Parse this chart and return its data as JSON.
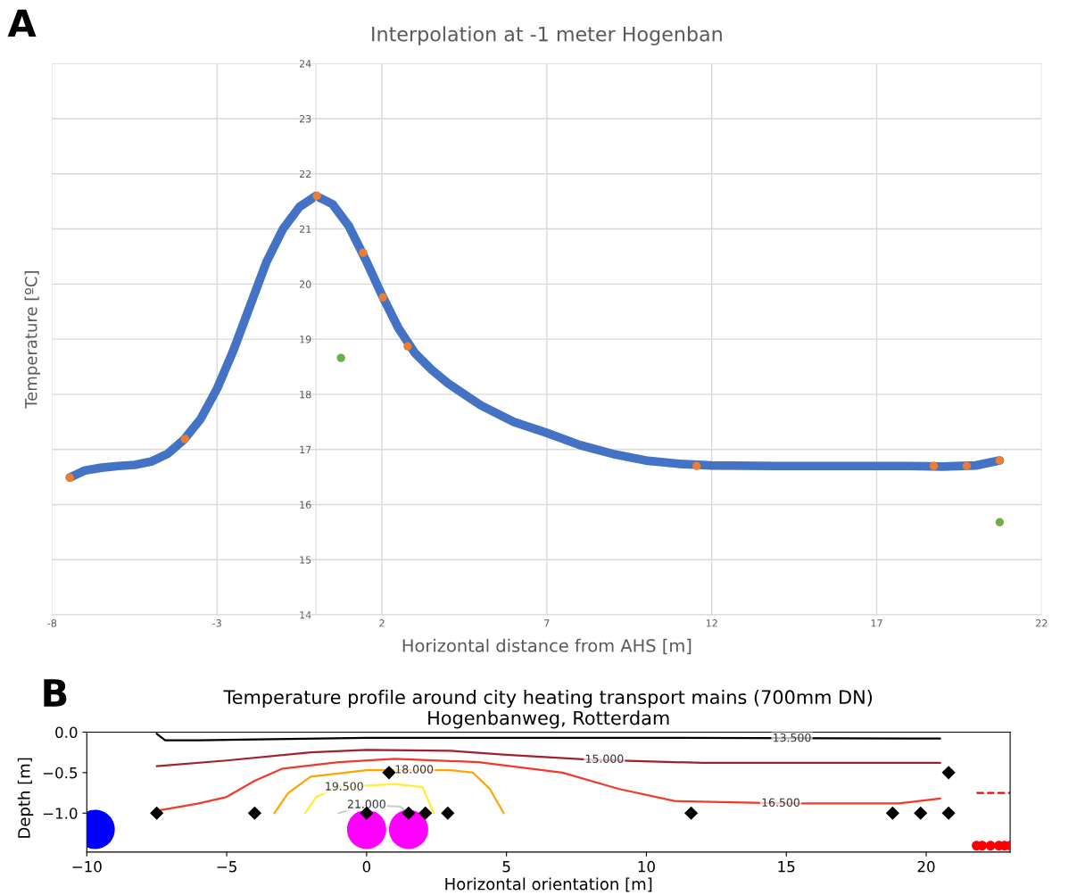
{
  "chart_data": [
    {
      "type": "scatter",
      "title": "Interpolation at -1 meter Hogenban",
      "xlabel": "Horizontal distance from AHS [m]",
      "ylabel": "Temperature [ºC]",
      "annotations": [
        "A"
      ],
      "xlim": [
        -8,
        22
      ],
      "xticks": [
        -8,
        -3,
        2,
        7,
        12,
        17,
        22
      ],
      "ylim": [
        14,
        24
      ],
      "yticks": [
        14,
        15,
        16,
        17,
        18,
        19,
        20,
        21,
        22,
        23,
        24
      ],
      "grid": true,
      "series": [
        {
          "type": "line",
          "color": "#4472c4",
          "x": [
            -7.46,
            -7,
            -6.5,
            -6,
            -5.5,
            -5,
            -4.5,
            -4,
            -3.5,
            -3,
            -2.5,
            -2,
            -1.5,
            -1,
            -0.5,
            0,
            0.5,
            1,
            1.5,
            2,
            2.5,
            3,
            3.5,
            4,
            5,
            6,
            7,
            8,
            9,
            10,
            11,
            12,
            14,
            16,
            18,
            19,
            20,
            20.73
          ],
          "values": [
            16.49,
            16.62,
            16.67,
            16.7,
            16.72,
            16.78,
            16.92,
            17.18,
            17.55,
            18.1,
            18.8,
            19.6,
            20.4,
            21.0,
            21.4,
            21.6,
            21.45,
            21.05,
            20.45,
            19.8,
            19.2,
            18.75,
            18.45,
            18.2,
            17.8,
            17.5,
            17.3,
            17.08,
            16.92,
            16.8,
            16.74,
            16.71,
            16.7,
            16.7,
            16.7,
            16.69,
            16.71,
            16.8
          ]
        },
        {
          "marker": "circle",
          "color": "#ed7d31",
          "x": [
            -7.46,
            -3.97,
            0.03,
            1.43,
            2.03,
            2.78,
            11.54,
            18.73,
            19.73,
            20.73
          ],
          "values": [
            16.49,
            17.19,
            21.6,
            20.57,
            19.76,
            18.87,
            16.7,
            16.7,
            16.7,
            16.8
          ]
        },
        {
          "marker": "circle",
          "color": "#70ad47",
          "x": [
            0.76,
            20.73
          ],
          "values": [
            18.66,
            15.68
          ]
        }
      ]
    },
    {
      "type": "scatter",
      "title": "Temperature profile around city heating transport mains (700mm DN)\nHogenbanweg, Rotterdam",
      "xlabel": "Horizontal orientation [m]",
      "ylabel": "Depth [m]",
      "annotations": [
        "B",
        {
          "text": "13.500",
          "x": 15.2,
          "y": -0.08
        },
        {
          "text": "15.000",
          "x": 8.5,
          "y": -0.34
        },
        {
          "text": "16.500",
          "x": 14.8,
          "y": -0.88
        },
        {
          "text": "18.000",
          "x": 1.7,
          "y": -0.47
        },
        {
          "text": "19.500",
          "x": -0.8,
          "y": -0.68
        },
        {
          "text": "21.000",
          "x": 0,
          "y": -0.9
        }
      ],
      "xlim": [
        -10,
        23
      ],
      "xticks": [
        {
          "value": -10,
          "label": "−10"
        },
        {
          "value": -5,
          "label": "−5"
        },
        0,
        5,
        10,
        15,
        20
      ],
      "ylim": [
        -1.48,
        0
      ],
      "yticks": [
        {
          "value": -1.0,
          "label": "−1.0"
        },
        {
          "value": -0.5,
          "label": "−0.5"
        },
        {
          "value": 0,
          "label": "0.0"
        }
      ],
      "grid": false,
      "series": [
        {
          "type": "line",
          "color": "#000000",
          "x": [
            -7.5,
            -7.2,
            -6,
            0,
            10,
            20.5
          ],
          "values": [
            -0.02,
            -0.1,
            -0.1,
            -0.07,
            -0.07,
            -0.08
          ]
        },
        {
          "type": "line",
          "color": "#a3202a",
          "x": [
            -7.5,
            -5,
            -2,
            0,
            3,
            5,
            8,
            12,
            20.5
          ],
          "values": [
            -0.42,
            -0.35,
            -0.25,
            -0.22,
            -0.23,
            -0.28,
            -0.34,
            -0.38,
            -0.38
          ]
        },
        {
          "type": "line",
          "color": "#f03a2a",
          "x": [
            -7.5,
            -6,
            -5,
            -4,
            -3,
            -1,
            1,
            4,
            7,
            9,
            11,
            15,
            19,
            20.5
          ],
          "values": [
            -0.97,
            -0.88,
            -0.8,
            -0.6,
            -0.45,
            -0.37,
            -0.33,
            -0.37,
            -0.5,
            -0.7,
            -0.85,
            -0.88,
            -0.88,
            -0.82
          ]
        },
        {
          "type": "line",
          "color": "#ffa500",
          "x": [
            -3.3,
            -2.8,
            -2,
            0,
            3,
            3.8,
            4.4,
            4.9
          ],
          "values": [
            -1.0,
            -0.75,
            -0.55,
            -0.47,
            -0.47,
            -0.5,
            -0.7,
            -1.0
          ]
        },
        {
          "type": "line",
          "color": "#ffee33",
          "x": [
            -2.2,
            -1.8,
            -1,
            1,
            2,
            2.4
          ],
          "values": [
            -1.0,
            -0.8,
            -0.68,
            -0.64,
            -0.68,
            -1.0
          ]
        },
        {
          "type": "line",
          "color": "#cccccc",
          "x": [
            -1.0,
            0,
            1.2,
            1.5
          ],
          "values": [
            -1.0,
            -0.9,
            -0.92,
            -1.0
          ]
        },
        {
          "type": "line",
          "color": "#ff0000",
          "line_style": "dashed",
          "x": [
            21.8,
            23
          ],
          "values": [
            -0.75,
            -0.75
          ]
        },
        {
          "color": "#000000",
          "marker": "diamond",
          "x": [
            -7.5,
            -4,
            0,
            1.5,
            2.1,
            2.9,
            11.6,
            18.8,
            19.8,
            20.8,
            0.8,
            20.8
          ],
          "values": [
            -1,
            -1,
            -1,
            -1,
            -1,
            -1,
            -1,
            -1,
            -1,
            -1,
            -0.5,
            -0.5
          ]
        },
        {
          "type": "bubble",
          "color": "#0000ff",
          "x": [
            -9.7
          ],
          "values": [
            -1.2
          ],
          "sizes": [
            1
          ]
        },
        {
          "type": "bubble",
          "color": "#ff00ff",
          "x": [
            0,
            1.5
          ],
          "values": [
            -1.2,
            -1.2
          ],
          "sizes": [
            1,
            1
          ]
        },
        {
          "color": "#ff0000",
          "marker": "circle",
          "x": [
            21.8,
            22.0,
            22.3,
            22.6,
            22.8,
            23.0
          ],
          "values": [
            -1.4,
            -1.4,
            -1.4,
            -1.4,
            -1.4,
            -1.4
          ]
        }
      ]
    }
  ]
}
